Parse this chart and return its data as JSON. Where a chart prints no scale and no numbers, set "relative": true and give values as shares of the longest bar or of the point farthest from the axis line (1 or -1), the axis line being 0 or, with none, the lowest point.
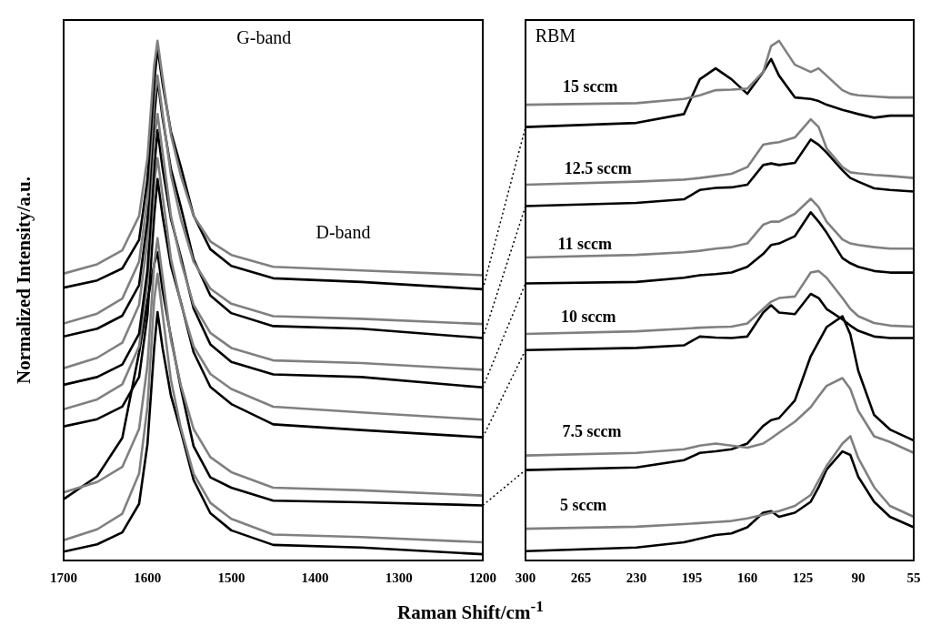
{
  "chart_data": [
    {
      "type": "line",
      "relative": true,
      "ylabel": "Normalized Intensity/a.u.",
      "xlabel": "Raman Shift/cm$^{-1}$",
      "xlim": [
        1700,
        1200
      ],
      "xticks": [
        1700,
        1600,
        1500,
        1400,
        1300,
        1200
      ],
      "tick_labels": "x",
      "grid": false,
      "legend": false,
      "marker": "none",
      "line_style": "solid",
      "x": [
        1700,
        1660,
        1630,
        1610,
        1600,
        1592,
        1588,
        1582,
        1572,
        1560,
        1545,
        1525,
        1500,
        1450,
        1345,
        1200
      ],
      "series": [
        {
          "color": "#808080",
          "values": [
            0.552,
            0.57,
            0.597,
            0.663,
            0.775,
            0.953,
            1.0,
            0.93,
            0.819,
            0.739,
            0.663,
            0.614,
            0.588,
            0.565,
            0.558,
            0.549
          ]
        },
        {
          "color": "#000000",
          "values": [
            0.525,
            0.539,
            0.562,
            0.617,
            0.733,
            0.918,
            0.987,
            0.918,
            0.825,
            0.756,
            0.664,
            0.599,
            0.567,
            0.543,
            0.536,
            0.522
          ]
        },
        {
          "color": "#808080",
          "values": [
            0.456,
            0.475,
            0.504,
            0.575,
            0.695,
            0.885,
            0.933,
            0.861,
            0.742,
            0.656,
            0.575,
            0.523,
            0.494,
            0.47,
            0.465,
            0.455
          ]
        },
        {
          "color": "#000000",
          "values": [
            0.431,
            0.446,
            0.471,
            0.53,
            0.654,
            0.852,
            0.926,
            0.852,
            0.753,
            0.679,
            0.58,
            0.51,
            0.476,
            0.451,
            0.446,
            0.428
          ]
        },
        {
          "color": "#808080",
          "values": [
            0.37,
            0.39,
            0.419,
            0.492,
            0.615,
            0.81,
            0.859,
            0.786,
            0.663,
            0.575,
            0.492,
            0.438,
            0.409,
            0.385,
            0.38,
            0.367
          ]
        },
        {
          "color": "#000000",
          "values": [
            0.338,
            0.353,
            0.377,
            0.436,
            0.559,
            0.755,
            0.828,
            0.755,
            0.657,
            0.583,
            0.485,
            0.416,
            0.382,
            0.358,
            0.353,
            0.333
          ]
        },
        {
          "color": "#808080",
          "values": [
            0.291,
            0.31,
            0.339,
            0.412,
            0.533,
            0.726,
            0.774,
            0.702,
            0.581,
            0.494,
            0.412,
            0.359,
            0.33,
            0.296,
            0.285,
            0.271
          ]
        },
        {
          "color": "#000000",
          "values": [
            0.258,
            0.272,
            0.296,
            0.353,
            0.472,
            0.663,
            0.734,
            0.663,
            0.567,
            0.496,
            0.401,
            0.334,
            0.301,
            0.262,
            0.251,
            0.237
          ]
        },
        {
          "color": "#808080",
          "values": [
            0.131,
            0.151,
            0.18,
            0.253,
            0.376,
            0.571,
            0.62,
            0.547,
            0.424,
            0.336,
            0.253,
            0.199,
            0.17,
            0.14,
            0.135,
            0.125
          ]
        },
        {
          "color": "#000000",
          "values": [
            0.118,
            0.162,
            0.236,
            0.4,
            0.5,
            0.57,
            0.593,
            0.52,
            0.43,
            0.33,
            0.22,
            0.16,
            0.14,
            0.115,
            0.112,
            0.106
          ]
        },
        {
          "color": "#808080",
          "values": [
            0.039,
            0.06,
            0.09,
            0.167,
            0.296,
            0.501,
            0.552,
            0.475,
            0.347,
            0.254,
            0.167,
            0.111,
            0.08,
            0.05,
            0.045,
            0.035
          ]
        },
        {
          "color": "#000000",
          "values": [
            0.017,
            0.031,
            0.054,
            0.109,
            0.224,
            0.409,
            0.478,
            0.409,
            0.317,
            0.248,
            0.155,
            0.091,
            0.058,
            0.03,
            0.025,
            0.012
          ]
        }
      ],
      "annotations": [
        "G-band",
        "D-band"
      ]
    },
    {
      "type": "line",
      "relative": true,
      "xlim": [
        300,
        55
      ],
      "xticks": [
        300,
        265,
        230,
        195,
        160,
        125,
        90,
        55
      ],
      "tick_labels": "x",
      "grid": false,
      "legend": false,
      "marker": "none",
      "line_style": "solid",
      "x": [
        300,
        230,
        200,
        190,
        180,
        170,
        160,
        150,
        145,
        140,
        130,
        120,
        115,
        110,
        100,
        95,
        90,
        80,
        70,
        55
      ],
      "series": [
        {
          "color": "#808080",
          "values": [
            0.877,
            0.88,
            0.888,
            0.895,
            0.905,
            0.906,
            0.908,
            0.94,
            0.99,
            1.0,
            0.954,
            0.94,
            0.947,
            0.933,
            0.905,
            0.898,
            0.895,
            0.893,
            0.891,
            0.891
          ]
        },
        {
          "color": "#000000",
          "values": [
            0.834,
            0.842,
            0.859,
            0.926,
            0.947,
            0.926,
            0.898,
            0.94,
            0.965,
            0.933,
            0.891,
            0.888,
            0.884,
            0.877,
            0.867,
            0.863,
            0.859,
            0.852,
            0.856,
            0.856
          ]
        },
        {
          "color": "#808080",
          "values": [
            0.723,
            0.729,
            0.733,
            0.736,
            0.74,
            0.744,
            0.757,
            0.8,
            0.803,
            0.805,
            0.814,
            0.849,
            0.834,
            0.793,
            0.757,
            0.747,
            0.745,
            0.742,
            0.74,
            0.736
          ]
        },
        {
          "color": "#000000",
          "values": [
            0.682,
            0.688,
            0.695,
            0.713,
            0.717,
            0.718,
            0.723,
            0.761,
            0.764,
            0.761,
            0.765,
            0.81,
            0.8,
            0.785,
            0.751,
            0.736,
            0.729,
            0.716,
            0.713,
            0.71
          ]
        },
        {
          "color": "#808080",
          "values": [
            0.583,
            0.588,
            0.593,
            0.596,
            0.6,
            0.603,
            0.61,
            0.646,
            0.652,
            0.652,
            0.667,
            0.696,
            0.68,
            0.652,
            0.618,
            0.61,
            0.607,
            0.603,
            0.6,
            0.6
          ]
        },
        {
          "color": "#000000",
          "values": [
            0.533,
            0.536,
            0.544,
            0.549,
            0.551,
            0.554,
            0.565,
            0.59,
            0.607,
            0.61,
            0.624,
            0.67,
            0.652,
            0.631,
            0.582,
            0.572,
            0.565,
            0.557,
            0.554,
            0.554
          ]
        },
        {
          "color": "#808080",
          "values": [
            0.436,
            0.441,
            0.446,
            0.448,
            0.449,
            0.45,
            0.456,
            0.484,
            0.498,
            0.505,
            0.508,
            0.554,
            0.557,
            0.544,
            0.505,
            0.484,
            0.47,
            0.457,
            0.452,
            0.45
          ]
        },
        {
          "color": "#000000",
          "values": [
            0.405,
            0.409,
            0.414,
            0.431,
            0.429,
            0.428,
            0.431,
            0.477,
            0.491,
            0.477,
            0.474,
            0.513,
            0.505,
            0.484,
            0.464,
            0.452,
            0.442,
            0.431,
            0.428,
            0.428
          ]
        },
        {
          "color": "#808080",
          "values": [
            0.202,
            0.207,
            0.214,
            0.221,
            0.225,
            0.221,
            0.217,
            0.225,
            0.235,
            0.246,
            0.267,
            0.295,
            0.316,
            0.336,
            0.351,
            0.33,
            0.288,
            0.239,
            0.228,
            0.207
          ]
        },
        {
          "color": "#000000",
          "values": [
            0.174,
            0.179,
            0.193,
            0.207,
            0.21,
            0.214,
            0.225,
            0.259,
            0.27,
            0.274,
            0.308,
            0.393,
            0.421,
            0.449,
            0.47,
            0.435,
            0.365,
            0.28,
            0.252,
            0.231
          ]
        },
        {
          "color": "#808080",
          "values": [
            0.061,
            0.065,
            0.07,
            0.072,
            0.074,
            0.076,
            0.081,
            0.088,
            0.092,
            0.095,
            0.105,
            0.126,
            0.154,
            0.182,
            0.225,
            0.239,
            0.197,
            0.141,
            0.105,
            0.084
          ]
        },
        {
          "color": "#000000",
          "values": [
            0.018,
            0.025,
            0.035,
            0.042,
            0.049,
            0.052,
            0.064,
            0.092,
            0.095,
            0.084,
            0.092,
            0.113,
            0.141,
            0.175,
            0.21,
            0.203,
            0.161,
            0.113,
            0.084,
            0.064
          ]
        }
      ],
      "annotations": [
        "RBM",
        "15 sccm",
        "12.5 sccm",
        "11 sccm",
        "10 sccm",
        "7.5 sccm",
        "5 sccm"
      ]
    }
  ]
}
